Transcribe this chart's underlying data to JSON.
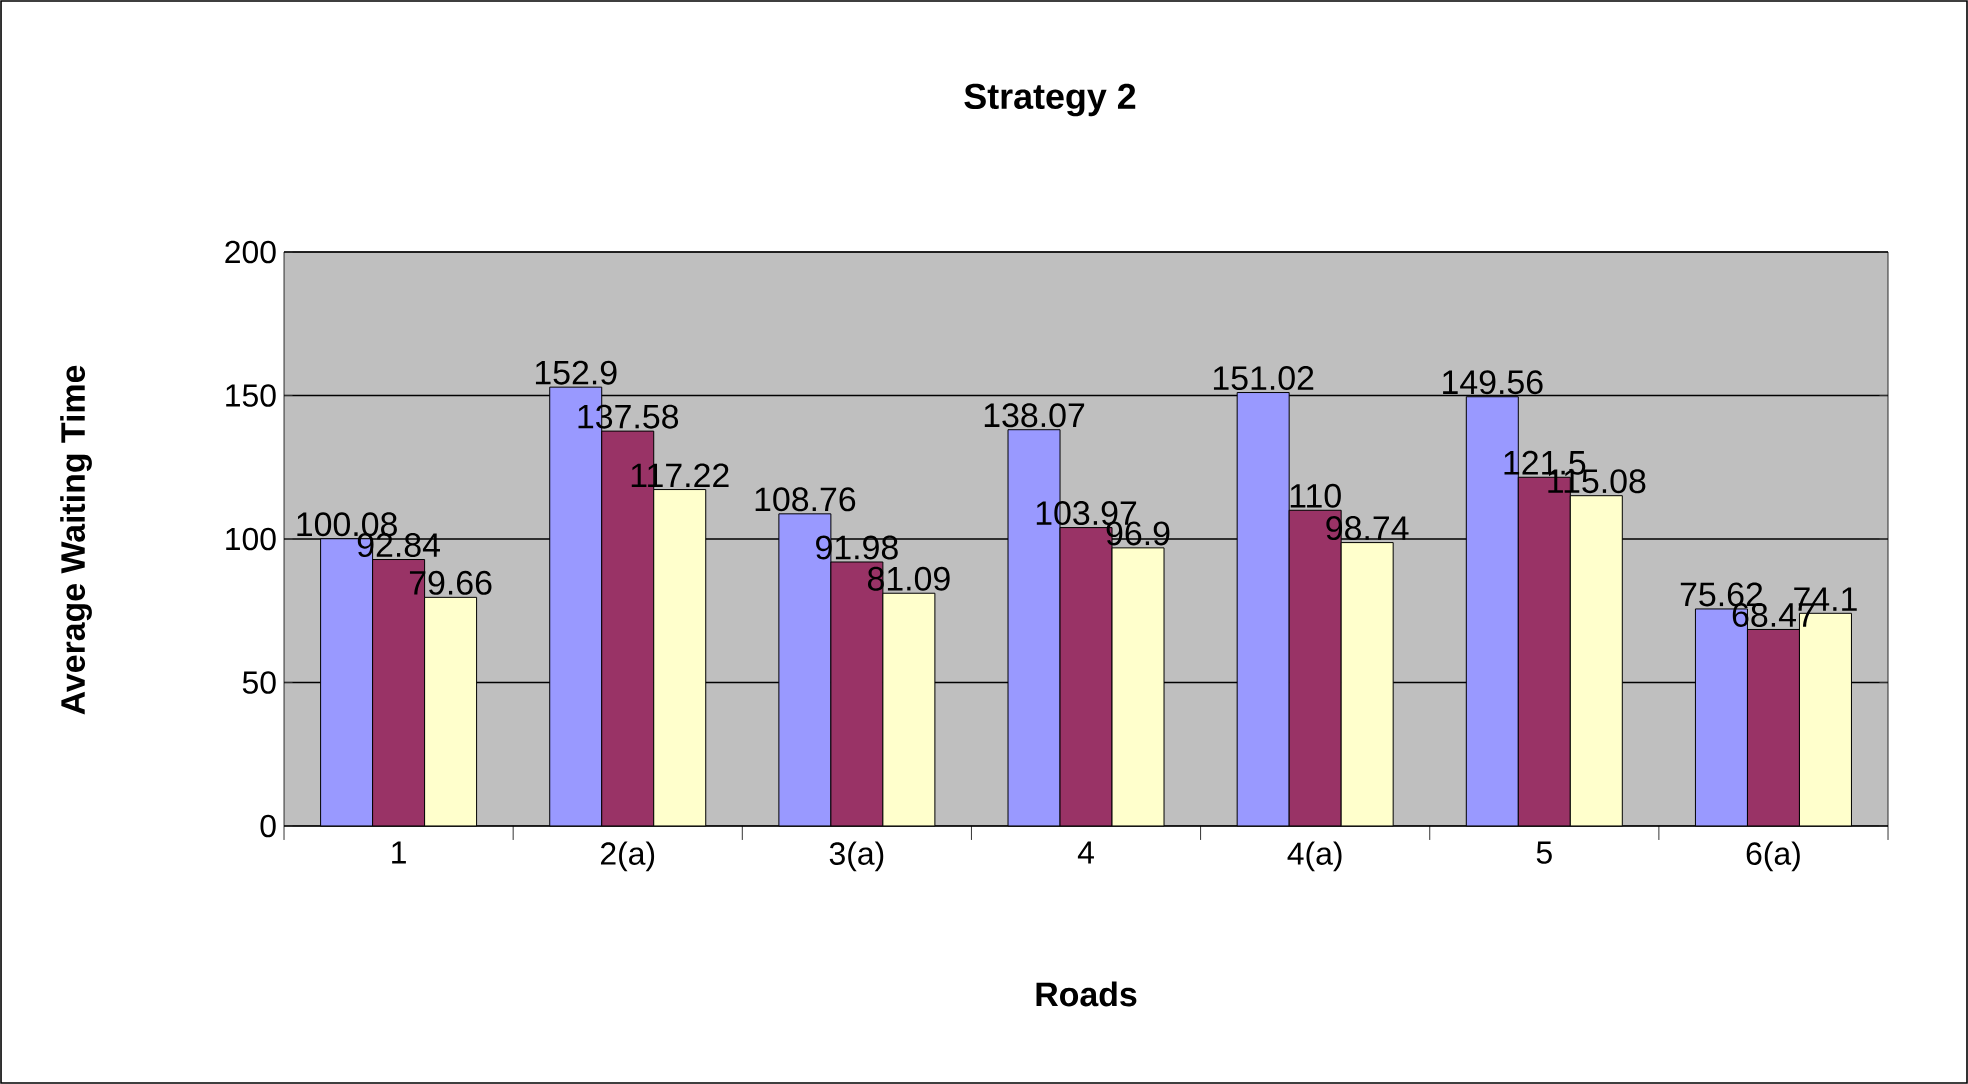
{
  "chart_data": {
    "type": "bar",
    "title": "Strategy 2",
    "xlabel": "Roads",
    "ylabel": "Average Waiting Time",
    "categories": [
      "1",
      "2(a)",
      "3(a)",
      "4",
      "4(a)",
      "5",
      "6(a)"
    ],
    "series": [
      {
        "color": "#9999ff",
        "values": [
          100.08,
          152.9,
          108.76,
          138.07,
          151.02,
          149.56,
          75.62
        ]
      },
      {
        "color": "#993366",
        "values": [
          92.84,
          137.58,
          91.98,
          103.97,
          110,
          121.5,
          68.47
        ]
      },
      {
        "color": "#ffffcc",
        "values": [
          79.66,
          117.22,
          81.09,
          96.9,
          98.74,
          115.08,
          74.1
        ]
      }
    ],
    "ylim": [
      0,
      200
    ],
    "yticks": [
      0,
      50,
      100,
      150,
      200
    ],
    "grid": "y",
    "data_labels": true
  }
}
